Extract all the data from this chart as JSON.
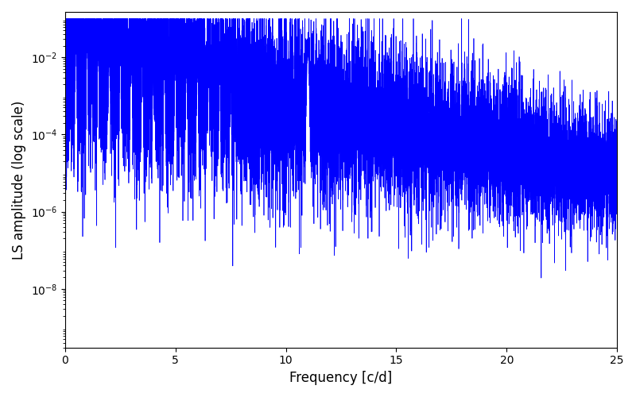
{
  "xlabel": "Frequency [c/d]",
  "ylabel": "LS amplitude (log scale)",
  "line_color": "#0000ff",
  "line_width": 0.5,
  "xlim": [
    0,
    25
  ],
  "ylim": [
    3e-10,
    0.15
  ],
  "yscale": "log",
  "n_points": 12000,
  "seed": 7,
  "background_color": "#ffffff",
  "figsize": [
    8.0,
    5.0
  ],
  "dpi": 100,
  "yticks": [
    1e-08,
    1e-06,
    0.0001,
    0.01
  ],
  "tick_fontsize": 10,
  "label_fontsize": 12
}
